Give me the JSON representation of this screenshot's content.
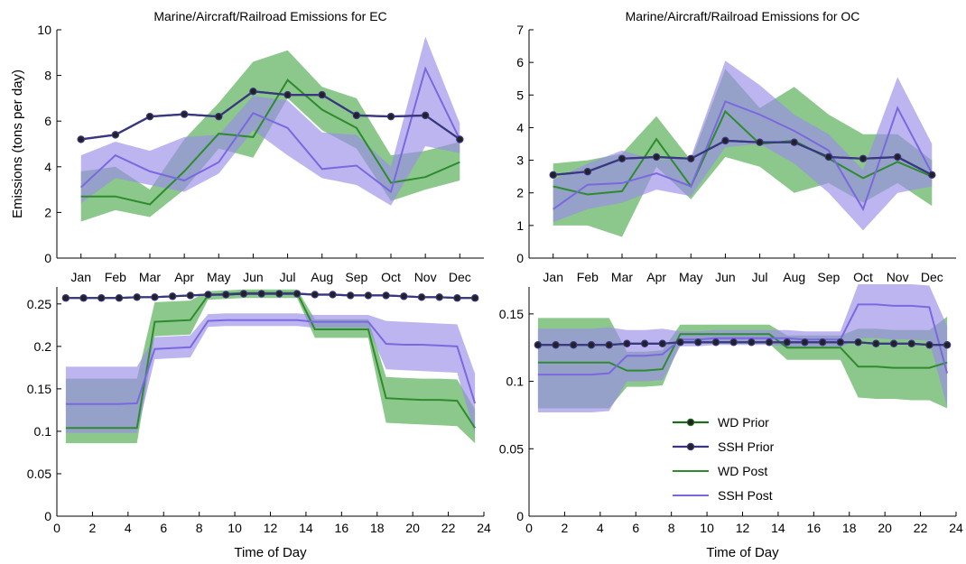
{
  "colors": {
    "wd_prior": "#1f6b1f",
    "ssh_prior": "#3a3585",
    "wd_post": "#2e8b2e",
    "ssh_post": "#7b68e0",
    "wd_band": "#66b466",
    "ssh_band": "#9a8ee8",
    "marker": "#222222"
  },
  "legend": {
    "placement": "inside bottom-right panel, center",
    "entries": [
      "WD Prior",
      "SSH Prior",
      "WD Post",
      "SSH Post"
    ]
  },
  "chart_data": [
    {
      "type": "line",
      "title": "Marine/Aircraft/Railroad Emissions for EC",
      "xlabel": "",
      "ylabel": "Emissions (tons per day)",
      "x_tick_labels": [
        "Jan",
        "Feb",
        "Mar",
        "Apr",
        "May",
        "Jun",
        "Jul",
        "Aug",
        "Sep",
        "Oct",
        "Nov",
        "Dec"
      ],
      "x": [
        1,
        2,
        3,
        4,
        5,
        6,
        7,
        8,
        9,
        10,
        11,
        12
      ],
      "xlim": [
        0.3,
        12.7
      ],
      "ylim": [
        0,
        10
      ],
      "y_ticks": [
        "0",
        "2",
        "4",
        "6",
        "8",
        "10"
      ],
      "y_tick_values": [
        0,
        2,
        4,
        6,
        8,
        10
      ],
      "series": [
        {
          "name": "WD Prior",
          "role": "prior-wd",
          "values": [
            5.2,
            5.4,
            6.2,
            6.3,
            6.2,
            7.3,
            7.15,
            7.15,
            6.25,
            6.2,
            6.25,
            5.2
          ]
        },
        {
          "name": "SSH Prior",
          "role": "prior-ssh",
          "values": [
            5.2,
            5.4,
            6.2,
            6.3,
            6.2,
            7.3,
            7.15,
            7.15,
            6.25,
            6.2,
            6.25,
            5.2
          ]
        },
        {
          "name": "WD Post",
          "role": "post-wd",
          "values": [
            2.7,
            2.7,
            2.35,
            3.8,
            5.45,
            5.3,
            7.8,
            6.5,
            5.7,
            3.3,
            3.55,
            4.2
          ],
          "lower": [
            1.6,
            2.1,
            1.8,
            3.0,
            4.8,
            4.4,
            7.0,
            5.6,
            4.8,
            2.5,
            3.0,
            3.4
          ],
          "upper": [
            3.8,
            4.0,
            3.0,
            5.2,
            6.8,
            8.6,
            9.1,
            7.5,
            7.0,
            4.5,
            4.7,
            5.1
          ]
        },
        {
          "name": "SSH Post",
          "role": "post-ssh",
          "values": [
            3.1,
            4.5,
            3.8,
            3.4,
            4.2,
            6.35,
            5.7,
            3.9,
            4.05,
            2.9,
            8.3,
            5.2
          ],
          "lower": [
            2.4,
            3.5,
            3.2,
            2.9,
            3.7,
            5.6,
            4.5,
            3.5,
            3.2,
            2.3,
            4.9,
            4.6
          ],
          "upper": [
            4.5,
            5.1,
            4.7,
            5.3,
            5.4,
            7.1,
            6.9,
            5.5,
            5.4,
            4.0,
            9.7,
            5.9
          ]
        }
      ]
    },
    {
      "type": "line",
      "title": "Marine/Aircraft/Railroad Emissions for OC",
      "xlabel": "",
      "ylabel": "",
      "x_tick_labels": [
        "Jan",
        "Feb",
        "Mar",
        "Apr",
        "May",
        "Jun",
        "Jul",
        "Aug",
        "Sep",
        "Oct",
        "Nov",
        "Dec"
      ],
      "x": [
        1,
        2,
        3,
        4,
        5,
        6,
        7,
        8,
        9,
        10,
        11,
        12
      ],
      "xlim": [
        0.3,
        12.7
      ],
      "ylim": [
        0,
        7
      ],
      "y_ticks": [
        "0",
        "1",
        "2",
        "3",
        "4",
        "5",
        "6",
        "7"
      ],
      "y_tick_values": [
        0,
        1,
        2,
        3,
        4,
        5,
        6,
        7
      ],
      "series": [
        {
          "name": "WD Prior",
          "role": "prior-wd",
          "values": [
            2.55,
            2.65,
            3.05,
            3.1,
            3.05,
            3.6,
            3.55,
            3.55,
            3.1,
            3.05,
            3.1,
            2.55
          ]
        },
        {
          "name": "SSH Prior",
          "role": "prior-ssh",
          "values": [
            2.55,
            2.65,
            3.05,
            3.1,
            3.05,
            3.6,
            3.55,
            3.55,
            3.1,
            3.05,
            3.1,
            2.55
          ]
        },
        {
          "name": "WD Post",
          "role": "post-wd",
          "values": [
            2.2,
            1.95,
            2.05,
            3.65,
            2.2,
            4.5,
            3.5,
            3.6,
            3.05,
            2.45,
            2.95,
            2.5
          ],
          "lower": [
            1.0,
            1.0,
            0.65,
            2.8,
            1.8,
            3.1,
            2.8,
            2.0,
            2.3,
            1.7,
            2.3,
            1.6
          ],
          "upper": [
            2.9,
            3.0,
            3.2,
            4.35,
            3.0,
            5.8,
            4.6,
            5.25,
            4.4,
            3.8,
            3.8,
            3.0
          ]
        },
        {
          "name": "SSH Post",
          "role": "post-ssh",
          "values": [
            1.5,
            2.25,
            2.3,
            2.6,
            2.2,
            4.8,
            4.4,
            3.9,
            3.3,
            1.5,
            4.6,
            2.6
          ],
          "lower": [
            1.1,
            1.5,
            1.7,
            2.1,
            1.9,
            3.4,
            3.5,
            2.9,
            2.0,
            0.85,
            2.0,
            2.2
          ],
          "upper": [
            2.4,
            2.9,
            3.3,
            3.0,
            3.1,
            6.05,
            5.3,
            4.4,
            3.8,
            2.7,
            5.55,
            3.5
          ]
        }
      ]
    },
    {
      "type": "line",
      "title": "",
      "xlabel": "Time of Day",
      "ylabel": "",
      "x": [
        0.5,
        1.5,
        2.5,
        3.5,
        4.5,
        5.5,
        6.5,
        7.5,
        8.5,
        9.5,
        10.5,
        11.5,
        12.5,
        13.5,
        14.5,
        15.5,
        16.5,
        17.5,
        18.5,
        19.5,
        20.5,
        21.5,
        22.5,
        23.5
      ],
      "xlim": [
        0,
        24
      ],
      "x_ticks": [
        "0",
        "2",
        "4",
        "6",
        "8",
        "10",
        "12",
        "14",
        "16",
        "18",
        "20",
        "22",
        "24"
      ],
      "x_tick_values": [
        0,
        2,
        4,
        6,
        8,
        10,
        12,
        14,
        16,
        18,
        20,
        22,
        24
      ],
      "ylim": [
        0,
        0.27
      ],
      "y_ticks": [
        "0",
        "0.05",
        "0.1",
        "0.15",
        "0.2",
        "0.25"
      ],
      "y_tick_values": [
        0,
        0.05,
        0.1,
        0.15,
        0.2,
        0.25
      ],
      "series": [
        {
          "name": "WD Prior",
          "role": "prior-wd",
          "values": [
            0.257,
            0.257,
            0.257,
            0.257,
            0.258,
            0.258,
            0.259,
            0.26,
            0.261,
            0.261,
            0.262,
            0.262,
            0.262,
            0.262,
            0.261,
            0.261,
            0.26,
            0.26,
            0.26,
            0.259,
            0.258,
            0.258,
            0.257,
            0.257
          ]
        },
        {
          "name": "SSH Prior",
          "role": "prior-ssh",
          "values": [
            0.257,
            0.257,
            0.257,
            0.257,
            0.258,
            0.258,
            0.259,
            0.26,
            0.261,
            0.261,
            0.262,
            0.262,
            0.262,
            0.262,
            0.261,
            0.261,
            0.26,
            0.26,
            0.26,
            0.259,
            0.258,
            0.258,
            0.257,
            0.257
          ]
        },
        {
          "name": "WD Post",
          "role": "post-wd",
          "values": [
            0.104,
            0.104,
            0.104,
            0.104,
            0.104,
            0.229,
            0.23,
            0.231,
            0.26,
            0.262,
            0.263,
            0.263,
            0.263,
            0.263,
            0.22,
            0.22,
            0.22,
            0.22,
            0.139,
            0.138,
            0.137,
            0.137,
            0.136,
            0.104
          ],
          "lower": [
            0.086,
            0.086,
            0.086,
            0.086,
            0.086,
            0.212,
            0.213,
            0.214,
            0.255,
            0.256,
            0.257,
            0.257,
            0.257,
            0.257,
            0.21,
            0.21,
            0.21,
            0.21,
            0.11,
            0.109,
            0.108,
            0.107,
            0.106,
            0.086
          ],
          "upper": [
            0.162,
            0.162,
            0.162,
            0.162,
            0.162,
            0.252,
            0.253,
            0.254,
            0.265,
            0.266,
            0.267,
            0.267,
            0.267,
            0.267,
            0.232,
            0.232,
            0.232,
            0.232,
            0.164,
            0.163,
            0.162,
            0.162,
            0.161,
            0.126
          ]
        },
        {
          "name": "SSH Post",
          "role": "post-ssh",
          "values": [
            0.132,
            0.132,
            0.132,
            0.132,
            0.133,
            0.197,
            0.198,
            0.199,
            0.23,
            0.231,
            0.231,
            0.231,
            0.231,
            0.231,
            0.229,
            0.229,
            0.229,
            0.229,
            0.203,
            0.202,
            0.202,
            0.201,
            0.2,
            0.133
          ],
          "lower": [
            0.098,
            0.098,
            0.098,
            0.098,
            0.098,
            0.185,
            0.186,
            0.187,
            0.223,
            0.224,
            0.224,
            0.224,
            0.224,
            0.224,
            0.222,
            0.222,
            0.222,
            0.222,
            0.173,
            0.172,
            0.171,
            0.17,
            0.169,
            0.096
          ],
          "upper": [
            0.176,
            0.176,
            0.176,
            0.176,
            0.176,
            0.211,
            0.212,
            0.213,
            0.238,
            0.239,
            0.239,
            0.239,
            0.239,
            0.239,
            0.237,
            0.237,
            0.237,
            0.237,
            0.23,
            0.229,
            0.228,
            0.227,
            0.226,
            0.168
          ]
        }
      ]
    },
    {
      "type": "line",
      "title": "",
      "xlabel": "Time of Day",
      "ylabel": "",
      "x": [
        0.5,
        1.5,
        2.5,
        3.5,
        4.5,
        5.5,
        6.5,
        7.5,
        8.5,
        9.5,
        10.5,
        11.5,
        12.5,
        13.5,
        14.5,
        15.5,
        16.5,
        17.5,
        18.5,
        19.5,
        20.5,
        21.5,
        22.5,
        23.5
      ],
      "xlim": [
        0,
        24
      ],
      "x_ticks": [
        "0",
        "2",
        "4",
        "6",
        "8",
        "10",
        "12",
        "14",
        "16",
        "18",
        "20",
        "22",
        "24"
      ],
      "x_tick_values": [
        0,
        2,
        4,
        6,
        8,
        10,
        12,
        14,
        16,
        18,
        20,
        22,
        24
      ],
      "ylim": [
        0,
        0.17
      ],
      "y_ticks": [
        "0",
        "0.05",
        "0.1",
        "0.15"
      ],
      "y_tick_values": [
        0,
        0.05,
        0.1,
        0.15
      ],
      "series": [
        {
          "name": "WD Prior",
          "role": "prior-wd",
          "values": [
            0.127,
            0.127,
            0.127,
            0.127,
            0.127,
            0.128,
            0.128,
            0.128,
            0.129,
            0.129,
            0.129,
            0.129,
            0.129,
            0.129,
            0.129,
            0.129,
            0.129,
            0.129,
            0.129,
            0.128,
            0.128,
            0.128,
            0.127,
            0.127
          ]
        },
        {
          "name": "SSH Prior",
          "role": "prior-ssh",
          "values": [
            0.127,
            0.127,
            0.127,
            0.127,
            0.127,
            0.128,
            0.128,
            0.128,
            0.129,
            0.129,
            0.129,
            0.129,
            0.129,
            0.129,
            0.129,
            0.129,
            0.129,
            0.129,
            0.129,
            0.128,
            0.128,
            0.128,
            0.127,
            0.127
          ]
        },
        {
          "name": "WD Post",
          "role": "post-wd",
          "values": [
            0.114,
            0.114,
            0.114,
            0.114,
            0.114,
            0.108,
            0.108,
            0.109,
            0.135,
            0.135,
            0.135,
            0.135,
            0.135,
            0.135,
            0.125,
            0.125,
            0.125,
            0.125,
            0.111,
            0.111,
            0.11,
            0.11,
            0.11,
            0.114
          ],
          "lower": [
            0.08,
            0.08,
            0.08,
            0.08,
            0.08,
            0.096,
            0.096,
            0.097,
            0.128,
            0.128,
            0.128,
            0.128,
            0.128,
            0.128,
            0.116,
            0.116,
            0.116,
            0.116,
            0.088,
            0.087,
            0.087,
            0.086,
            0.086,
            0.08
          ],
          "upper": [
            0.147,
            0.147,
            0.147,
            0.147,
            0.147,
            0.122,
            0.122,
            0.123,
            0.142,
            0.142,
            0.142,
            0.142,
            0.142,
            0.142,
            0.134,
            0.134,
            0.134,
            0.134,
            0.139,
            0.139,
            0.138,
            0.138,
            0.138,
            0.148
          ]
        },
        {
          "name": "SSH Post",
          "role": "post-ssh",
          "values": [
            0.105,
            0.105,
            0.105,
            0.105,
            0.106,
            0.119,
            0.119,
            0.12,
            0.131,
            0.131,
            0.132,
            0.132,
            0.132,
            0.132,
            0.132,
            0.131,
            0.131,
            0.131,
            0.157,
            0.157,
            0.156,
            0.156,
            0.155,
            0.106
          ],
          "lower": [
            0.077,
            0.077,
            0.077,
            0.077,
            0.078,
            0.1,
            0.1,
            0.101,
            0.126,
            0.126,
            0.127,
            0.127,
            0.127,
            0.127,
            0.126,
            0.125,
            0.125,
            0.125,
            0.132,
            0.132,
            0.131,
            0.131,
            0.13,
            0.081
          ],
          "upper": [
            0.139,
            0.139,
            0.139,
            0.139,
            0.14,
            0.138,
            0.138,
            0.139,
            0.137,
            0.137,
            0.138,
            0.138,
            0.138,
            0.138,
            0.138,
            0.137,
            0.137,
            0.137,
            0.172,
            0.172,
            0.172,
            0.172,
            0.171,
            0.141
          ]
        }
      ]
    }
  ]
}
